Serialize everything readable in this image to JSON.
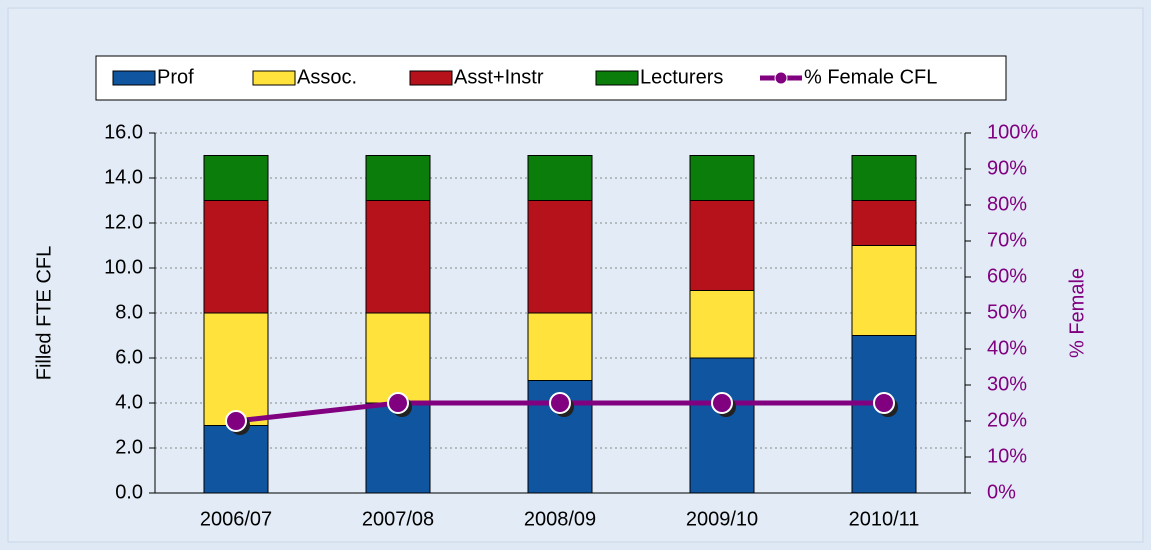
{
  "chart_data": {
    "type": "bar",
    "categories": [
      "2006/07",
      "2007/08",
      "2008/09",
      "2009/10",
      "2010/11"
    ],
    "series": [
      {
        "name": "Prof",
        "color": "#0f55a0",
        "values": [
          3,
          4,
          5,
          6,
          7
        ]
      },
      {
        "name": "Assoc.",
        "color": "#ffe23c",
        "values": [
          5,
          4,
          3,
          3,
          4
        ]
      },
      {
        "name": "Asst+Instr",
        "color": "#b5121b",
        "values": [
          5,
          5,
          5,
          4,
          2
        ]
      },
      {
        "name": "Lecturers",
        "color": "#0a7d0a",
        "values": [
          2,
          2,
          2,
          2,
          2
        ]
      },
      {
        "name": "% Female CFL",
        "color": "#800080",
        "type": "line",
        "axis": "y2",
        "values": [
          20,
          25,
          25,
          25,
          25
        ]
      }
    ],
    "y_label": "Filled FTE CFL",
    "y2_label": "% Female",
    "ylim": [
      0,
      16
    ],
    "yticks": [
      {
        "value": 0,
        "label": "0.0"
      },
      {
        "value": 2,
        "label": "2.0"
      },
      {
        "value": 4,
        "label": "4.0"
      },
      {
        "value": 6,
        "label": "6.0"
      },
      {
        "value": 8,
        "label": "8.0"
      },
      {
        "value": 10,
        "label": "10.0"
      },
      {
        "value": 12,
        "label": "12.0"
      },
      {
        "value": 14,
        "label": "14.0"
      },
      {
        "value": 16,
        "label": "16.0"
      }
    ],
    "y2lim": [
      0,
      100
    ],
    "y2ticks": [
      {
        "value": 0,
        "label": "0%"
      },
      {
        "value": 10,
        "label": "10%"
      },
      {
        "value": 20,
        "label": "20%"
      },
      {
        "value": 30,
        "label": "30%"
      },
      {
        "value": 40,
        "label": "40%"
      },
      {
        "value": 50,
        "label": "50%"
      },
      {
        "value": 60,
        "label": "60%"
      },
      {
        "value": 70,
        "label": "70%"
      },
      {
        "value": 80,
        "label": "80%"
      },
      {
        "value": 90,
        "label": "90%"
      },
      {
        "value": 100,
        "label": "100%"
      }
    ],
    "grid": true,
    "legend": "top"
  }
}
